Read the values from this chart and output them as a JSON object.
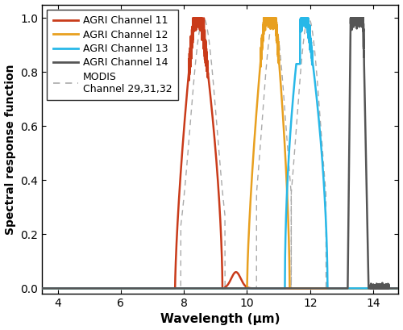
{
  "title": "",
  "xlabel": "Wavelength (μm)",
  "ylabel": "Spectral response function",
  "xlim": [
    3.5,
    14.8
  ],
  "ylim": [
    -0.02,
    1.05
  ],
  "xticks": [
    4,
    6,
    8,
    10,
    12,
    14
  ],
  "yticks": [
    0,
    0.2,
    0.4,
    0.6,
    0.8,
    1.0
  ],
  "ch11_color": "#C93B1A",
  "ch12_color": "#E8A020",
  "ch13_color": "#28B8E8",
  "ch14_color": "#555555",
  "modis_color": "#AAAAAA",
  "legend_labels": [
    "AGRI Channel 11",
    "AGRI Channel 12",
    "AGRI Channel 13",
    "AGRI Channel 14",
    "MODIS\nChannel 29,31,32"
  ],
  "background_color": "#ffffff",
  "figsize": [
    5.0,
    4.09
  ],
  "dpi": 100
}
